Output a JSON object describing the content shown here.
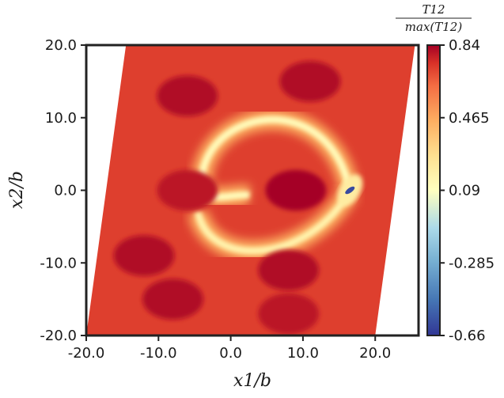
{
  "chart_data": {
    "type": "heatmap",
    "title": "",
    "xlabel": "x1/b",
    "ylabel": "x2/b",
    "colorbar_label": {
      "numerator": "T12",
      "denominator": "max(T12)"
    },
    "xlim": [
      -20,
      26
    ],
    "ylim": [
      -20,
      20
    ],
    "x_ticks": [
      -20,
      -10,
      0,
      10,
      20
    ],
    "x_tick_labels": [
      "-20.0",
      "-10.0",
      "0.0",
      "10.0",
      "20.0"
    ],
    "y_ticks": [
      -20,
      -10,
      0,
      10,
      20
    ],
    "y_tick_labels": [
      "-20.0",
      "-10.0",
      "0.0",
      "10.0",
      "20.0"
    ],
    "color_range": [
      -0.66,
      0.84
    ],
    "colorbar_ticks": [
      0.84,
      0.465,
      0.09,
      -0.285,
      -0.66
    ],
    "colorbar_tick_labels": [
      "0.84",
      "0.465",
      "0.09",
      "-0.285",
      "-0.66"
    ],
    "colormap": "RdYlBu_r",
    "domain_shape": "parallelogram",
    "domain_corners": [
      [
        -20,
        -20
      ],
      [
        20,
        -20
      ],
      [
        25.5,
        20
      ],
      [
        -14.5,
        20
      ]
    ],
    "background_level": 0.72,
    "features": [
      {
        "name": "upper-arc",
        "kind": "arc",
        "center": [
          7,
          1
        ],
        "radius_x": 11,
        "radius_y": 14,
        "level": 0.1
      },
      {
        "name": "lower-arc",
        "kind": "arc",
        "center": [
          7,
          -1
        ],
        "radius_x": 11,
        "radius_y": 10,
        "level": 0.15
      },
      {
        "name": "core-dipole",
        "kind": "point",
        "center": [
          16.5,
          0
        ],
        "level": -0.6
      },
      {
        "name": "high-lobe-upper-left",
        "kind": "blob",
        "center": [
          -6,
          13
        ],
        "level": 0.82
      },
      {
        "name": "high-lobe-upper-right",
        "kind": "blob",
        "center": [
          11,
          15
        ],
        "level": 0.82
      },
      {
        "name": "high-lobe-center",
        "kind": "blob",
        "center": [
          9,
          0
        ],
        "level": 0.84
      },
      {
        "name": "high-lobe-left",
        "kind": "blob",
        "center": [
          -6,
          0
        ],
        "level": 0.8
      },
      {
        "name": "high-lobe-lower-left",
        "kind": "blob",
        "center": [
          -12,
          -9
        ],
        "level": 0.82
      },
      {
        "name": "high-lobe-lower-mid",
        "kind": "blob",
        "center": [
          8,
          -11
        ],
        "level": 0.82
      },
      {
        "name": "high-lobe-bottom-left",
        "kind": "blob",
        "center": [
          -8,
          -15
        ],
        "level": 0.82
      },
      {
        "name": "high-lobe-bottom-mid",
        "kind": "blob",
        "center": [
          8,
          -17
        ],
        "level": 0.8
      }
    ]
  }
}
